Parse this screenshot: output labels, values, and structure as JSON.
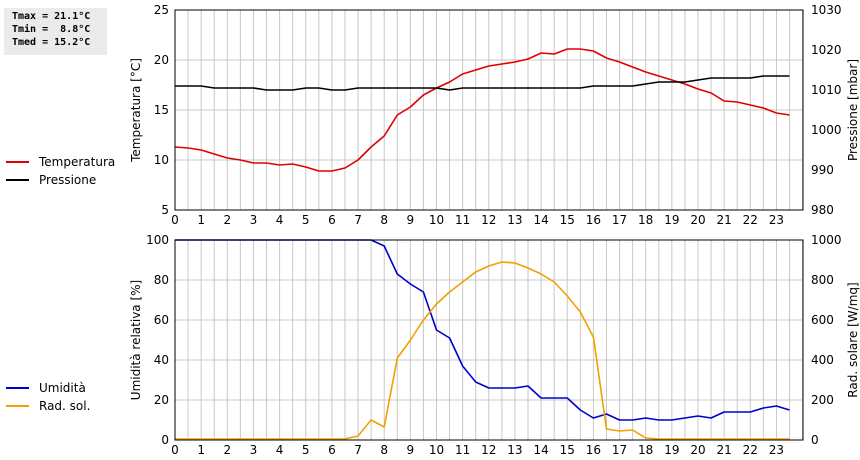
{
  "stats": {
    "tmax": "Tmax = 21.1°C",
    "tmin": "Tmin =  8.8°C",
    "tmed": "Tmed = 15.2°C"
  },
  "chart_data": [
    {
      "type": "line",
      "xlabel": "",
      "ylabel": "Temperatura [°C]",
      "ylabel_right": "Pressione [mbar]",
      "xlim": [
        0,
        24
      ],
      "ylim": [
        5,
        25
      ],
      "ylim_right": [
        980,
        1030
      ],
      "x_ticks": [
        0,
        1,
        2,
        3,
        4,
        5,
        6,
        7,
        8,
        9,
        10,
        11,
        12,
        13,
        14,
        15,
        16,
        17,
        18,
        19,
        20,
        21,
        22,
        23
      ],
      "y_ticks": [
        5,
        10,
        15,
        20,
        25
      ],
      "y_ticks_right": [
        980,
        990,
        1000,
        1010,
        1020,
        1030
      ],
      "grid": true,
      "legend_position": "left",
      "series": [
        {
          "name": "Temperatura",
          "axis": "left",
          "color": "#e00000",
          "x": [
            0,
            0.5,
            1,
            1.5,
            2,
            2.5,
            3,
            3.5,
            4,
            4.5,
            5,
            5.5,
            6,
            6.5,
            7,
            7.5,
            8,
            8.5,
            9,
            9.5,
            10,
            10.5,
            11,
            11.5,
            12,
            12.5,
            13,
            13.5,
            14,
            14.5,
            15,
            15.5,
            16,
            16.5,
            17,
            17.5,
            18,
            18.5,
            19,
            19.5,
            20,
            20.5,
            21,
            21.5,
            22,
            22.5,
            23,
            23.5
          ],
          "values": [
            11.3,
            11.2,
            11.0,
            10.6,
            10.2,
            10.0,
            9.7,
            9.7,
            9.5,
            9.6,
            9.3,
            8.9,
            8.9,
            9.2,
            10.0,
            11.3,
            12.4,
            14.5,
            15.3,
            16.5,
            17.2,
            17.8,
            18.6,
            19.0,
            19.4,
            19.6,
            19.8,
            20.1,
            20.7,
            20.6,
            21.1,
            21.1,
            20.9,
            20.2,
            19.8,
            19.3,
            18.8,
            18.4,
            18.0,
            17.6,
            17.1,
            16.7,
            15.9,
            15.8,
            15.5,
            15.2,
            14.7,
            14.5
          ]
        },
        {
          "name": "Pressione",
          "axis": "right",
          "color": "#000000",
          "x": [
            0,
            0.5,
            1,
            1.5,
            2,
            2.5,
            3,
            3.5,
            4,
            4.5,
            5,
            5.5,
            6,
            6.5,
            7,
            7.5,
            8,
            8.5,
            9,
            9.5,
            10,
            10.5,
            11,
            11.5,
            12,
            12.5,
            13,
            13.5,
            14,
            14.5,
            15,
            15.5,
            16,
            16.5,
            17,
            17.5,
            18,
            18.5,
            19,
            19.5,
            20,
            20.5,
            21,
            21.5,
            22,
            22.5,
            23,
            23.5
          ],
          "values": [
            1011,
            1011,
            1011,
            1010.5,
            1010.5,
            1010.5,
            1010.5,
            1010,
            1010,
            1010,
            1010.5,
            1010.5,
            1010,
            1010,
            1010.5,
            1010.5,
            1010.5,
            1010.5,
            1010.5,
            1010.5,
            1010.5,
            1010,
            1010.5,
            1010.5,
            1010.5,
            1010.5,
            1010.5,
            1010.5,
            1010.5,
            1010.5,
            1010.5,
            1010.5,
            1011,
            1011,
            1011,
            1011,
            1011.5,
            1012,
            1012,
            1012,
            1012.5,
            1013,
            1013,
            1013,
            1013,
            1013.5,
            1013.5,
            1013.5
          ]
        }
      ]
    },
    {
      "type": "line",
      "xlabel": "",
      "ylabel": "Umidità relativa [%]",
      "ylabel_right": "Rad. solare [W/mq]",
      "xlim": [
        0,
        24
      ],
      "ylim": [
        0,
        100
      ],
      "ylim_right": [
        0,
        1000
      ],
      "x_ticks": [
        0,
        1,
        2,
        3,
        4,
        5,
        6,
        7,
        8,
        9,
        10,
        11,
        12,
        13,
        14,
        15,
        16,
        17,
        18,
        19,
        20,
        21,
        22,
        23
      ],
      "y_ticks": [
        0,
        20,
        40,
        60,
        80,
        100
      ],
      "y_ticks_right": [
        0,
        200,
        400,
        600,
        800,
        1000
      ],
      "grid": true,
      "legend_position": "left",
      "series": [
        {
          "name": "Umidità",
          "axis": "left",
          "color": "#0000cc",
          "x": [
            0,
            0.5,
            1,
            1.5,
            2,
            2.5,
            3,
            3.5,
            4,
            4.5,
            5,
            5.5,
            6,
            6.5,
            7,
            7.5,
            8,
            8.5,
            9,
            9.5,
            10,
            10.5,
            11,
            11.5,
            12,
            12.5,
            13,
            13.5,
            14,
            14.5,
            15,
            15.5,
            16,
            16.5,
            17,
            17.5,
            18,
            18.5,
            19,
            19.5,
            20,
            20.5,
            21,
            21.5,
            22,
            22.5,
            23,
            23.5
          ],
          "values": [
            100,
            100,
            100,
            100,
            100,
            100,
            100,
            100,
            100,
            100,
            100,
            100,
            100,
            100,
            100,
            100,
            97,
            83,
            78,
            74,
            55,
            51,
            37,
            29,
            26,
            26,
            26,
            27,
            21,
            21,
            21,
            15,
            11,
            13,
            10,
            10,
            11,
            10,
            10,
            11,
            12,
            11,
            14,
            14,
            14,
            16,
            17,
            15
          ]
        },
        {
          "name": "Rad. sol.",
          "axis": "right",
          "color": "#f0a000",
          "x": [
            0,
            0.5,
            1,
            1.5,
            2,
            2.5,
            3,
            3.5,
            4,
            4.5,
            5,
            5.5,
            6,
            6.5,
            7,
            7.5,
            8,
            8.5,
            9,
            9.5,
            10,
            10.5,
            11,
            11.5,
            12,
            12.5,
            13,
            13.5,
            14,
            14.5,
            15,
            15.5,
            16,
            16.5,
            17,
            17.5,
            18,
            18.5,
            19,
            19.5,
            20,
            20.5,
            21,
            21.5,
            22,
            22.5,
            23,
            23.5
          ],
          "values": [
            5,
            5,
            5,
            5,
            5,
            5,
            5,
            5,
            5,
            5,
            5,
            5,
            5,
            5,
            20,
            100,
            65,
            410,
            500,
            600,
            680,
            740,
            790,
            840,
            870,
            890,
            885,
            860,
            830,
            790,
            720,
            640,
            515,
            55,
            45,
            50,
            10,
            5,
            5,
            5,
            5,
            5,
            5,
            5,
            5,
            5,
            5,
            5
          ]
        }
      ]
    }
  ]
}
